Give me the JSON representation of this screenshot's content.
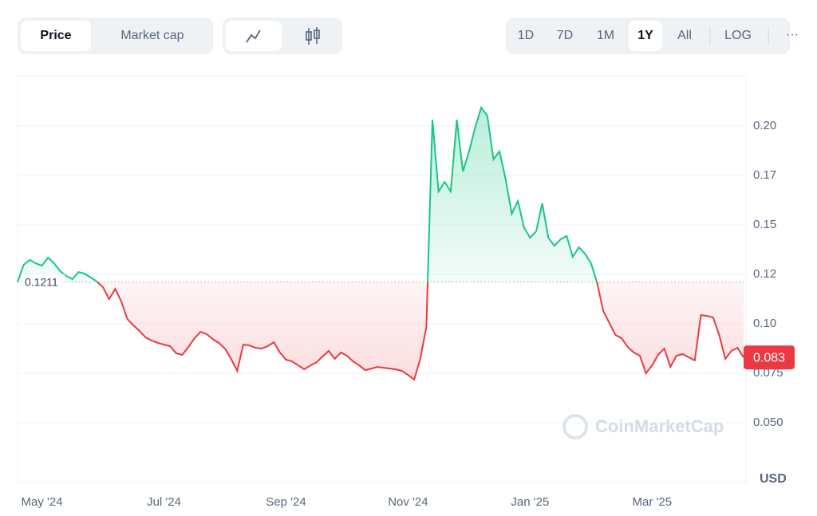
{
  "toolbar": {
    "tabs": [
      "Price",
      "Market cap"
    ],
    "ranges": [
      "1D",
      "7D",
      "1M",
      "1Y",
      "All"
    ],
    "log": "LOG",
    "more": "···"
  },
  "chart_data": {
    "type": "line",
    "y_axis_label": "USD",
    "watermark": "CoinMarketCap",
    "color_up": "#16c784",
    "color_down": "#ea3943",
    "grid": true,
    "ylim": [
      0.0198,
      0.2254
    ],
    "yticks": [
      {
        "value": 0.05,
        "label": "0.050"
      },
      0.075,
      {
        "value": 0.1,
        "label": "0.10"
      },
      {
        "value": 0.125,
        "label": "0.12"
      },
      0.15,
      {
        "value": 0.175,
        "label": "0.17"
      },
      {
        "value": 0.2,
        "label": "0.20"
      }
    ],
    "categories": [
      null,
      null,
      null,
      null,
      "May '24",
      null,
      null,
      null,
      null,
      null,
      null,
      null,
      null,
      null,
      null,
      null,
      null,
      null,
      null,
      null,
      null,
      null,
      null,
      null,
      "Jul '24",
      null,
      null,
      null,
      null,
      null,
      null,
      null,
      null,
      null,
      null,
      null,
      null,
      null,
      null,
      null,
      null,
      null,
      null,
      null,
      "Sep '24",
      null,
      null,
      null,
      null,
      null,
      null,
      null,
      null,
      null,
      null,
      null,
      null,
      null,
      null,
      null,
      null,
      null,
      null,
      null,
      "Nov '24",
      null,
      null,
      null,
      null,
      null,
      null,
      null,
      null,
      null,
      null,
      null,
      null,
      null,
      null,
      null,
      null,
      null,
      null,
      null,
      "Jan '25",
      null,
      null,
      null,
      null,
      null,
      null,
      null,
      null,
      null,
      null,
      null,
      null,
      null,
      null,
      null,
      null,
      null,
      null,
      null,
      "Mar '25",
      null,
      null,
      null,
      null,
      null,
      null,
      null,
      null,
      null,
      null,
      null,
      null,
      null,
      null,
      null
    ],
    "series": [
      {
        "values": [
          0.1211,
          0.1298,
          0.1323,
          0.1306,
          0.1294,
          0.1335,
          0.1306,
          0.1266,
          0.1242,
          0.1226,
          0.1262,
          0.1254,
          0.1234,
          0.1214,
          0.1185,
          0.1125,
          0.1177,
          0.1113,
          0.1024,
          0.0992,
          0.0964,
          0.0931,
          0.0915,
          0.0903,
          0.0895,
          0.0887,
          0.0851,
          0.0843,
          0.0883,
          0.0927,
          0.096,
          0.0948,
          0.0923,
          0.0903,
          0.0875,
          0.0823,
          0.0762,
          0.0895,
          0.0891,
          0.0879,
          0.0875,
          0.0887,
          0.0907,
          0.0855,
          0.0819,
          0.081,
          0.079,
          0.077,
          0.079,
          0.0806,
          0.0835,
          0.0863,
          0.0823,
          0.0855,
          0.0839,
          0.081,
          0.079,
          0.0766,
          0.0774,
          0.0782,
          0.0778,
          0.0774,
          0.077,
          0.0762,
          0.0742,
          0.0718,
          0.0823,
          0.0984,
          0.2032,
          0.1669,
          0.1718,
          0.1669,
          0.2032,
          0.177,
          0.1871,
          0.1992,
          0.2093,
          0.2052,
          0.1831,
          0.1871,
          0.173,
          0.1556,
          0.1621,
          0.1488,
          0.1435,
          0.1468,
          0.1609,
          0.1435,
          0.1395,
          0.1427,
          0.1444,
          0.1339,
          0.1387,
          0.1355,
          0.1306,
          0.1206,
          0.1065,
          0.1004,
          0.0944,
          0.0927,
          0.0883,
          0.0855,
          0.0839,
          0.075,
          0.079,
          0.0843,
          0.0875,
          0.0782,
          0.0839,
          0.0847,
          0.0831,
          0.0815,
          0.1044,
          0.104,
          0.1032,
          0.0944,
          0.0823,
          0.0863,
          0.0879,
          0.083
        ]
      }
    ]
  }
}
